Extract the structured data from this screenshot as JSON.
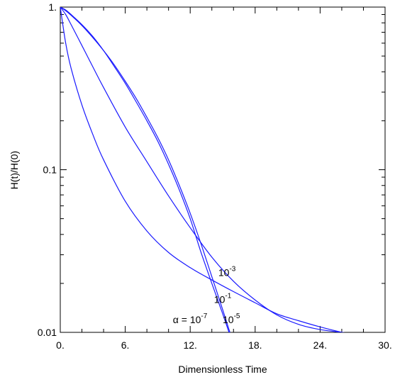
{
  "chart_data": {
    "type": "line",
    "title": "",
    "xlabel": "Dimensionless Time",
    "ylabel": "H(t)/H(0)",
    "xlim": [
      0,
      30
    ],
    "ylim": [
      0.01,
      1
    ],
    "yscale": "log",
    "grid": false,
    "x_ticks": [
      0,
      6,
      12,
      18,
      24,
      30
    ],
    "x_tick_labels": [
      "0.",
      "6.",
      "12.",
      "18.",
      "24.",
      "30."
    ],
    "y_ticks": [
      0.01,
      0.1,
      1
    ],
    "y_tick_labels": [
      "0.01",
      "0.1",
      "1."
    ],
    "line_color": "#1a1aff",
    "series": [
      {
        "name": "10-7",
        "x": [
          0,
          0.5,
          1,
          2,
          3,
          4,
          5,
          6,
          7,
          8,
          9,
          10,
          11,
          12,
          13,
          14,
          15,
          15.7
        ],
        "y": [
          1.0,
          0.96,
          0.9,
          0.78,
          0.66,
          0.54,
          0.43,
          0.34,
          0.262,
          0.2,
          0.15,
          0.108,
          0.075,
          0.05,
          0.031,
          0.02,
          0.013,
          0.0095
        ]
      },
      {
        "name": "10-5",
        "x": [
          0,
          0.5,
          1,
          2,
          3,
          4,
          5,
          6,
          7,
          8,
          9,
          10,
          11,
          12,
          13,
          14,
          15,
          16
        ],
        "y": [
          1.0,
          0.95,
          0.89,
          0.77,
          0.65,
          0.54,
          0.44,
          0.35,
          0.275,
          0.21,
          0.158,
          0.115,
          0.08,
          0.054,
          0.035,
          0.022,
          0.0138,
          0.0085
        ]
      },
      {
        "name": "10-3",
        "x": [
          0,
          0.5,
          1,
          2,
          3,
          4,
          6,
          8,
          10,
          12,
          14,
          16,
          18,
          20,
          22,
          24,
          26,
          27
        ],
        "y": [
          1.0,
          0.9,
          0.78,
          0.58,
          0.43,
          0.32,
          0.183,
          0.112,
          0.069,
          0.044,
          0.029,
          0.0206,
          0.0158,
          0.0128,
          0.0112,
          0.0104,
          0.01,
          0.0098
        ]
      },
      {
        "name": "10-1",
        "x": [
          0,
          0.5,
          1,
          2,
          3,
          4,
          6,
          8,
          10,
          12,
          14,
          16,
          18,
          20,
          22,
          24,
          26,
          27
        ],
        "y": [
          1.0,
          0.6,
          0.42,
          0.25,
          0.165,
          0.115,
          0.064,
          0.042,
          0.031,
          0.025,
          0.021,
          0.0178,
          0.0152,
          0.013,
          0.0118,
          0.0108,
          0.01,
          0.0097
        ]
      }
    ],
    "annotations": [
      {
        "base": "10",
        "exp": "-3",
        "x": 14.6,
        "y": 0.0222
      },
      {
        "base": "10",
        "exp": "-1",
        "x": 14.2,
        "y": 0.0152
      },
      {
        "prefix": "α = ",
        "base": "10",
        "exp": "-7",
        "x": 10.4,
        "y": 0.0114
      },
      {
        "base": "10",
        "exp": "-5",
        "x": 15.0,
        "y": 0.0114
      }
    ]
  }
}
